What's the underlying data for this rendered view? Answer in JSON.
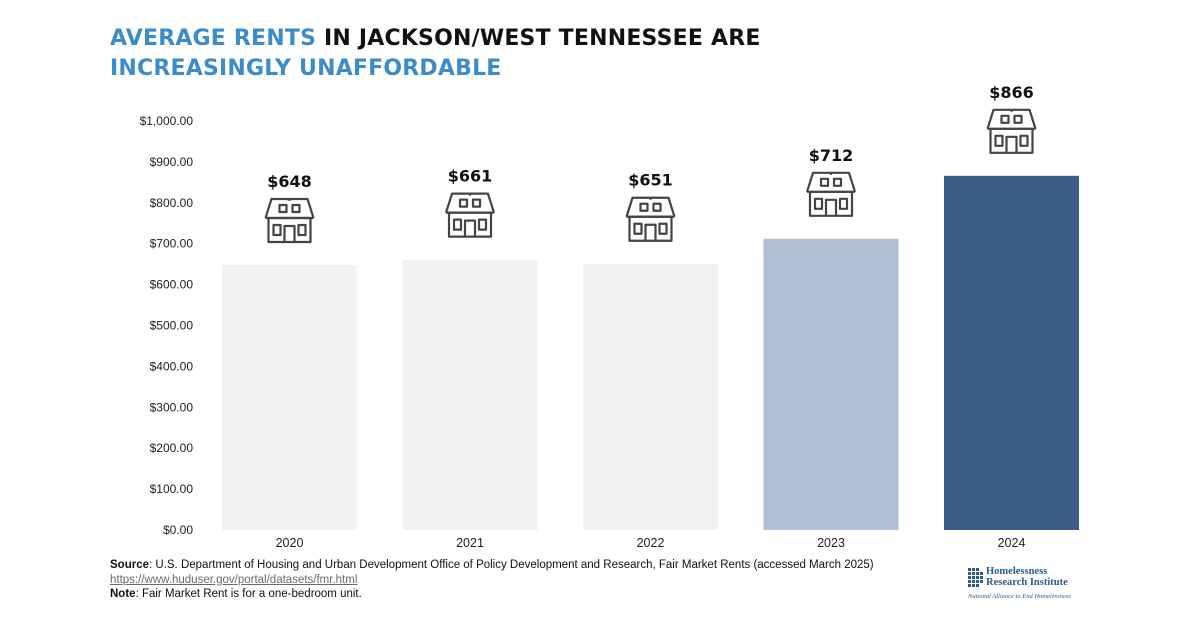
{
  "title": {
    "part1": "AVERAGE RENTS",
    "part2": " IN JACKSON/WEST TENNESSEE ARE",
    "line2": "INCREASINGLY UNAFFORDABLE"
  },
  "colors": {
    "accent": "#3b8cc8",
    "bar_default": "#f2f2f2",
    "bar_2023": "#b0bfd2",
    "bar_2024": "#3d5d89",
    "house_stroke": "#444444"
  },
  "icons": {
    "house": "house-icon"
  },
  "chart_data": {
    "type": "bar",
    "categories": [
      "2020",
      "2021",
      "2022",
      "2023",
      "2024"
    ],
    "values": [
      648,
      661,
      651,
      712,
      866
    ],
    "data_labels": [
      "$648",
      "$661",
      "$651",
      "$712",
      "$866"
    ],
    "bar_colors": [
      "#f2f2f2",
      "#f2f2f2",
      "#f2f2f2",
      "#b0bfd2",
      "#3d5d89"
    ],
    "ylim": [
      0,
      1000
    ],
    "yticks": [
      0,
      100,
      200,
      300,
      400,
      500,
      600,
      700,
      800,
      900,
      1000
    ],
    "ytick_labels": [
      "$0.00",
      "$100.00",
      "$200.00",
      "$300.00",
      "$400.00",
      "$500.00",
      "$600.00",
      "$700.00",
      "$800.00",
      "$900.00",
      "$1,000.00"
    ],
    "grid": false,
    "xlabel": "",
    "ylabel": ""
  },
  "footer": {
    "source_label": "Source",
    "source_text": ": U.S. Department of Housing and Urban Development Office of Policy Development and Research, Fair Market Rents (accessed March 2025)",
    "source_link": "https://www.huduser.gov/portal/datasets/fmr.html",
    "note_label": "Note",
    "note_text": ": Fair Market Rent is for a one-bedroom unit."
  },
  "logo": {
    "line1": "Homelessness",
    "line2": "Research Institute",
    "tagline": "National Alliance to End Homelessness"
  }
}
